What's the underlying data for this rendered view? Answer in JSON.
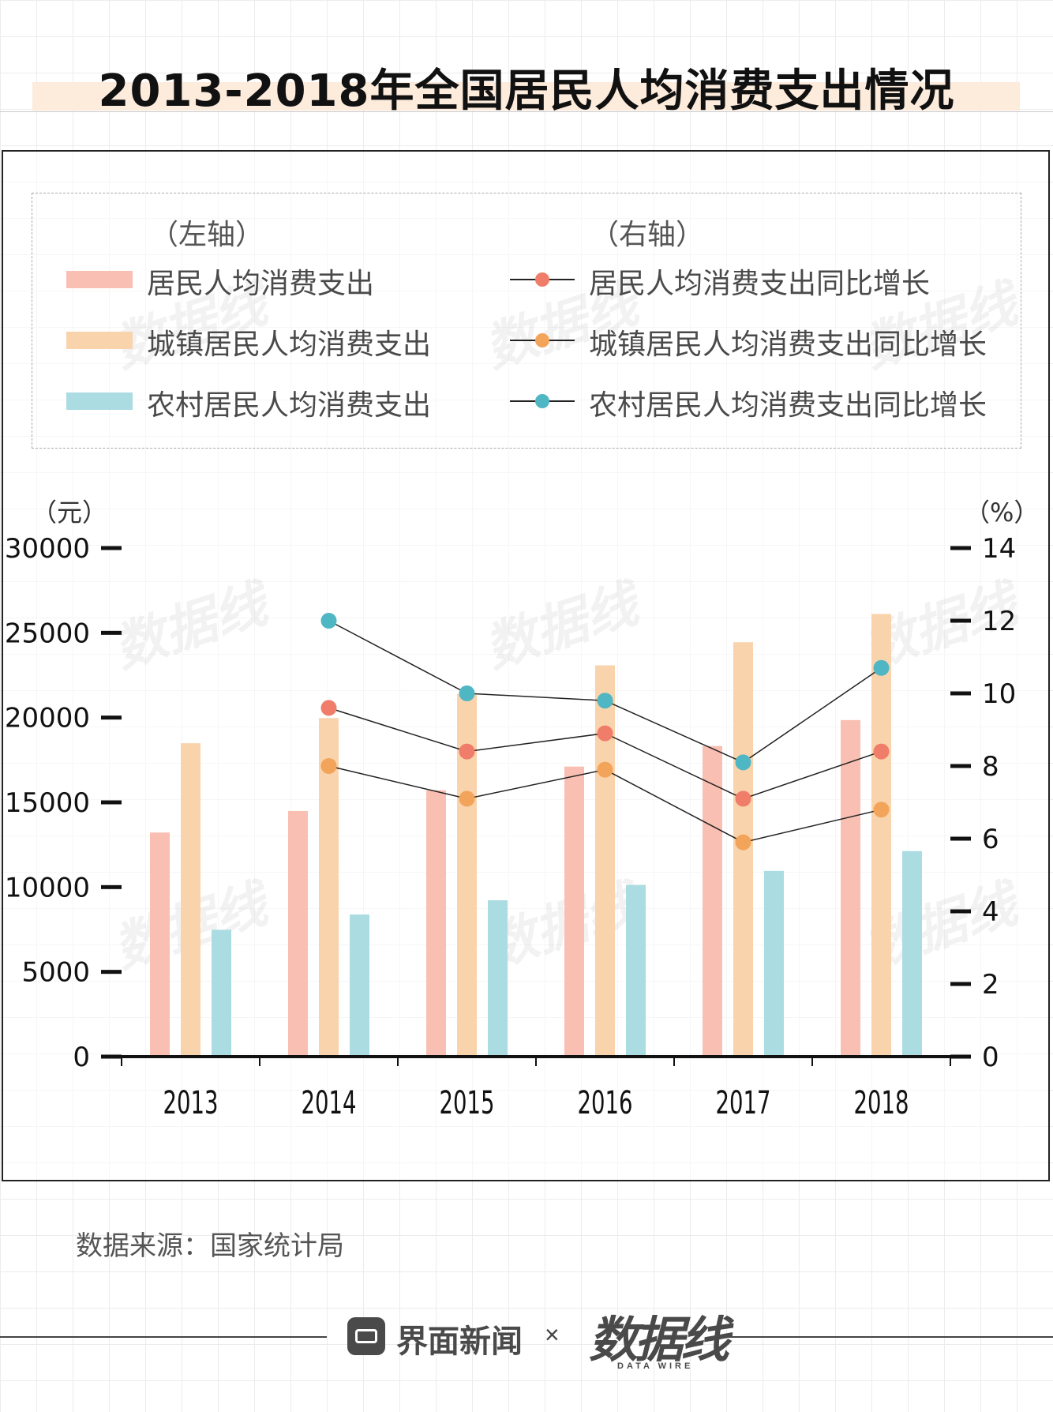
{
  "header": {
    "title": "2013-2018年全国居民人均消费支出情况"
  },
  "legend": {
    "left_axis_label": "（左轴）",
    "right_axis_label": "（右轴）",
    "bars": [
      {
        "label": "居民人均消费支出",
        "color": "#f9bfb2"
      },
      {
        "label": "城镇居民人均消费支出",
        "color": "#f9d3ac"
      },
      {
        "label": "农村居民人均消费支出",
        "color": "#aadce2"
      }
    ],
    "lines": [
      {
        "label": "居民人均消费支出同比增长",
        "color": "#f07d6a"
      },
      {
        "label": "城镇居民人均消费支出同比增长",
        "color": "#f2a55a"
      },
      {
        "label": "农村居民人均消费支出同比增长",
        "color": "#4fb6c4"
      }
    ]
  },
  "chart_data": {
    "type": "bar",
    "categories": [
      "2013",
      "2014",
      "2015",
      "2016",
      "2017",
      "2018"
    ],
    "left_unit": "（元）",
    "right_unit": "（%）",
    "left_ylim": [
      0,
      30000
    ],
    "left_ticks": [
      "30000",
      "25000",
      "20000",
      "15000",
      "10000",
      "5000",
      "0"
    ],
    "right_ylim": [
      0,
      14
    ],
    "right_ticks": [
      "14",
      "12",
      "10",
      "8",
      "6",
      "4",
      "2",
      "0"
    ],
    "series": [
      {
        "name": "居民人均消费支出",
        "axis": "left",
        "values": [
          13220,
          14491,
          15712,
          17111,
          18322,
          19853
        ],
        "color": "#f9bfb2"
      },
      {
        "name": "城镇居民人均消费支出",
        "axis": "left",
        "values": [
          18488,
          19968,
          21392,
          23079,
          24445,
          26112
        ],
        "color": "#f9d3ac"
      },
      {
        "name": "农村居民人均消费支出",
        "axis": "left",
        "values": [
          7485,
          8383,
          9223,
          10130,
          10955,
          12124
        ],
        "color": "#aadce2"
      }
    ],
    "line_series": [
      {
        "name": "居民人均消费支出同比增长",
        "axis": "right",
        "values": [
          null,
          9.6,
          8.4,
          8.9,
          7.1,
          8.4
        ],
        "color": "#f07d6a"
      },
      {
        "name": "城镇居民人均消费支出同比增长",
        "axis": "right",
        "values": [
          null,
          8.0,
          7.1,
          7.9,
          5.9,
          6.8
        ],
        "color": "#f2a55a"
      },
      {
        "name": "农村居民人均消费支出同比增长",
        "axis": "right",
        "values": [
          null,
          12.0,
          10.0,
          9.8,
          8.1,
          10.7
        ],
        "color": "#4fb6c4"
      }
    ]
  },
  "footer": {
    "source": "数据来源：国家统计局",
    "brand": "界面新闻",
    "times": "×",
    "partner": "数据线",
    "partner_sub": "DATA WIRE"
  }
}
